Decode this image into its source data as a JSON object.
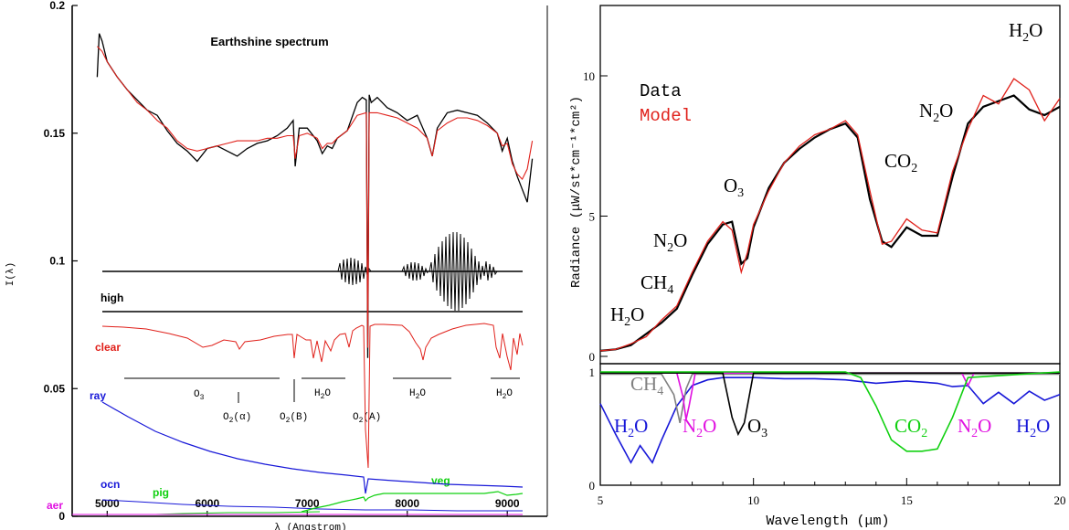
{
  "colors": {
    "black": "#000000",
    "red": "#e0201a",
    "blue": "#1818d8",
    "green": "#10d010",
    "magenta": "#e010e0",
    "gray": "#808080"
  },
  "chart_data": [
    {
      "type": "line",
      "title": "Earthshine spectrum",
      "xlabel": "λ (Angstrom)",
      "ylabel": "I(λ)",
      "xlim": [
        4650,
        9400
      ],
      "ylim": [
        0,
        0.2
      ],
      "x_ticks": [
        "5000",
        "6000",
        "7000",
        "8000",
        "9000"
      ],
      "y_ticks": [
        "0",
        "0.05",
        "0.1",
        "0.15",
        "0.2"
      ],
      "grid": false,
      "series": [
        {
          "name": "",
          "color": "#000000",
          "x": [
            4900,
            4920,
            4950,
            5000,
            5100,
            5200,
            5300,
            5400,
            5500,
            5600,
            5700,
            5800,
            5900,
            6000,
            6100,
            6200,
            6300,
            6400,
            6500,
            6600,
            6700,
            6800,
            6860,
            6880,
            6920,
            7000,
            7100,
            7150,
            7200,
            7250,
            7300,
            7400,
            7500,
            7550,
            7590,
            7605,
            7620,
            7640,
            7700,
            7800,
            7900,
            8000,
            8100,
            8200,
            8250,
            8300,
            8400,
            8500,
            8600,
            8700,
            8800,
            8900,
            8950,
            9000,
            9050,
            9100,
            9150,
            9200,
            9250
          ],
          "y": [
            0.172,
            0.189,
            0.186,
            0.178,
            0.172,
            0.167,
            0.163,
            0.159,
            0.157,
            0.151,
            0.146,
            0.143,
            0.139,
            0.144,
            0.145,
            0.143,
            0.141,
            0.144,
            0.146,
            0.147,
            0.149,
            0.152,
            0.155,
            0.137,
            0.152,
            0.152,
            0.147,
            0.142,
            0.145,
            0.144,
            0.148,
            0.151,
            0.162,
            0.164,
            0.163,
            0.062,
            0.165,
            0.162,
            0.164,
            0.16,
            0.158,
            0.155,
            0.157,
            0.148,
            0.141,
            0.152,
            0.158,
            0.159,
            0.158,
            0.157,
            0.154,
            0.15,
            0.143,
            0.148,
            0.139,
            0.133,
            0.128,
            0.123,
            0.14
          ]
        },
        {
          "name": "",
          "color": "#e0201a",
          "x": [
            4900,
            4950,
            5000,
            5100,
            5200,
            5300,
            5400,
            5500,
            5600,
            5700,
            5800,
            5900,
            6000,
            6100,
            6200,
            6300,
            6400,
            6500,
            6600,
            6700,
            6800,
            6860,
            6880,
            6920,
            7000,
            7100,
            7150,
            7200,
            7250,
            7300,
            7400,
            7500,
            7590,
            7605,
            7620,
            7700,
            7800,
            7900,
            8000,
            8100,
            8200,
            8250,
            8300,
            8400,
            8500,
            8600,
            8700,
            8800,
            8900,
            8950,
            9000,
            9050,
            9100,
            9150,
            9200,
            9250
          ],
          "y": [
            0.184,
            0.182,
            0.178,
            0.172,
            0.167,
            0.162,
            0.159,
            0.155,
            0.152,
            0.147,
            0.144,
            0.143,
            0.144,
            0.145,
            0.146,
            0.147,
            0.147,
            0.147,
            0.148,
            0.148,
            0.149,
            0.149,
            0.14,
            0.149,
            0.15,
            0.148,
            0.144,
            0.146,
            0.146,
            0.148,
            0.151,
            0.157,
            0.158,
            0.066,
            0.158,
            0.158,
            0.157,
            0.156,
            0.154,
            0.152,
            0.148,
            0.141,
            0.151,
            0.154,
            0.156,
            0.156,
            0.155,
            0.153,
            0.15,
            0.145,
            0.146,
            0.138,
            0.134,
            0.132,
            0.136,
            0.147
          ]
        }
      ],
      "annotations": [
        "high",
        "clear",
        "ray",
        "ocn",
        "pig",
        "aer",
        "veg",
        "O3",
        "O2(α)",
        "O2(B)",
        "O2(A)",
        "H2O"
      ]
    },
    {
      "type": "line",
      "title": "",
      "xlabel": "Wavelength (μm)",
      "ylabel": "Radiance (μW/st*cm⁻¹*cm²)",
      "xlim": [
        5,
        20
      ],
      "ylim": [
        0,
        10.6
      ],
      "x_ticks": [
        "5",
        "10",
        "15",
        "20"
      ],
      "y_ticks": [
        "0",
        "5",
        "10"
      ],
      "lower_y_ticks": [
        "0",
        "1"
      ],
      "legend": [
        "Data",
        "Model"
      ],
      "legend_position": "top-left",
      "grid": false,
      "series": [
        {
          "name": "Data",
          "color": "#000000",
          "x": [
            5,
            5.5,
            6,
            6.5,
            7,
            7.5,
            8,
            8.5,
            9,
            9.3,
            9.6,
            9.8,
            10,
            10.5,
            11,
            11.5,
            12,
            12.5,
            13,
            13.4,
            13.8,
            14.2,
            14.5,
            15,
            15.5,
            16,
            16.5,
            17,
            17.5,
            18,
            18.5,
            19,
            19.5,
            20
          ],
          "y": [
            0.2,
            0.25,
            0.4,
            0.8,
            1.2,
            1.7,
            2.9,
            4.0,
            4.7,
            4.8,
            3.3,
            3.5,
            4.6,
            6.0,
            6.9,
            7.4,
            7.8,
            8.1,
            8.3,
            7.8,
            5.6,
            4.1,
            3.9,
            4.6,
            4.3,
            4.3,
            6.4,
            8.3,
            8.9,
            9.1,
            9.3,
            8.8,
            8.6,
            8.9
          ]
        },
        {
          "name": "Model",
          "color": "#e0201a",
          "x": [
            5,
            5.5,
            6,
            6.5,
            7,
            7.5,
            8,
            8.5,
            9,
            9.3,
            9.6,
            9.8,
            10,
            10.5,
            11,
            11.5,
            12,
            12.5,
            13,
            13.4,
            13.8,
            14.2,
            14.5,
            15,
            15.5,
            16,
            16.5,
            17,
            17.5,
            18,
            18.5,
            19,
            19.5,
            20
          ],
          "y": [
            0.2,
            0.25,
            0.45,
            0.7,
            1.3,
            1.8,
            3.0,
            4.1,
            4.8,
            4.5,
            3.0,
            3.7,
            4.7,
            5.9,
            6.9,
            7.5,
            7.9,
            8.1,
            8.4,
            7.9,
            5.9,
            4.0,
            4.1,
            4.9,
            4.5,
            4.4,
            6.6,
            8.1,
            9.3,
            9.0,
            9.9,
            9.5,
            8.4,
            9.2
          ]
        }
      ],
      "lower_panel": {
        "ylim": [
          0,
          1
        ],
        "series": [
          {
            "name": "",
            "color": "#1818d8",
            "x": [
              5,
              5.5,
              6,
              6.3,
              6.7,
              7,
              7.5,
              8,
              8.5,
              9,
              10,
              11,
              12,
              13,
              14,
              15,
              16,
              16.5,
              17,
              17.5,
              18,
              18.5,
              19,
              19.5,
              20
            ],
            "y": [
              0.72,
              0.45,
              0.2,
              0.35,
              0.2,
              0.4,
              0.7,
              0.88,
              0.93,
              0.95,
              0.95,
              0.94,
              0.94,
              0.93,
              0.9,
              0.92,
              0.9,
              0.87,
              0.88,
              0.72,
              0.82,
              0.72,
              0.83,
              0.75,
              0.8
            ]
          },
          {
            "name": "",
            "color": "#808080",
            "x": [
              5,
              7,
              7.4,
              7.6,
              7.8,
              8,
              9,
              20
            ],
            "y": [
              0.98,
              0.98,
              0.8,
              0.55,
              0.85,
              0.98,
              0.98,
              0.98
            ]
          },
          {
            "name": "",
            "color": "#e010e0",
            "x": [
              5,
              7.5,
              7.7,
              7.8,
              7.9,
              8.1,
              16.8,
              17,
              17.2,
              20
            ],
            "y": [
              0.99,
              0.99,
              0.78,
              0.58,
              0.7,
              0.99,
              0.99,
              0.88,
              0.99,
              0.99
            ]
          },
          {
            "name": "",
            "color": "#000000",
            "x": [
              5,
              9,
              9.3,
              9.5,
              9.7,
              10,
              20
            ],
            "y": [
              0.99,
              0.99,
              0.6,
              0.45,
              0.55,
              0.99,
              0.99
            ]
          },
          {
            "name": "",
            "color": "#10d010",
            "x": [
              5,
              13,
              13.5,
              14,
              14.5,
              15,
              15.5,
              16,
              16.5,
              17,
              20
            ],
            "y": [
              1.0,
              1.0,
              0.95,
              0.7,
              0.4,
              0.3,
              0.3,
              0.32,
              0.6,
              0.95,
              1.0
            ]
          }
        ]
      },
      "annotations": [
        "H2O",
        "CH4",
        "N2O",
        "O3",
        "CO2",
        "N2O",
        "H2O",
        "CH4",
        "H2O",
        "N2O",
        "O3",
        "CO2",
        "N2O",
        "H2O"
      ]
    }
  ],
  "left_chart": {
    "title": "Earthshine spectrum",
    "ylabel": "I(λ)",
    "xlabel": "λ (Angstrom)",
    "y_tick_labels": [
      "0",
      "0.05",
      "0.1",
      "0.15",
      "0.2"
    ],
    "x_tick_labels": [
      "5000",
      "6000",
      "7000",
      "8000",
      "9000"
    ],
    "labels": {
      "high": "high",
      "clear": "clear",
      "ray": "ray",
      "ocn": "ocn",
      "pig": "pig",
      "aer": "aer",
      "veg": "veg",
      "o3": "O",
      "o3_sub": "3",
      "o2a_main": "O",
      "o2a_sub": "2",
      "o2a_tail": "(α)",
      "o2b_main": "O",
      "o2b_sub": "2",
      "o2b_tail": "(B)",
      "o2A_main": "O",
      "o2A_sub": "2",
      "o2A_tail": "(A)",
      "h2o_main": "H",
      "h2o_sub": "2",
      "h2o_tail": "O"
    }
  },
  "right_chart": {
    "ylabel": "Radiance (μW/st*cm⁻¹*cm²)",
    "xlabel": "Wavelength (μm)",
    "y_tick_labels": [
      "0",
      "5",
      "10"
    ],
    "lower_y_tick_labels": [
      "0",
      "1"
    ],
    "x_tick_labels": [
      "5",
      "10",
      "15",
      "20"
    ],
    "legend_data": "Data",
    "legend_model": "Model",
    "labels": {
      "h2o": "H",
      "two": "2",
      "o": "O",
      "ch": "CH",
      "four": "4",
      "n": "N",
      "co": "CO",
      "three": "3"
    }
  }
}
